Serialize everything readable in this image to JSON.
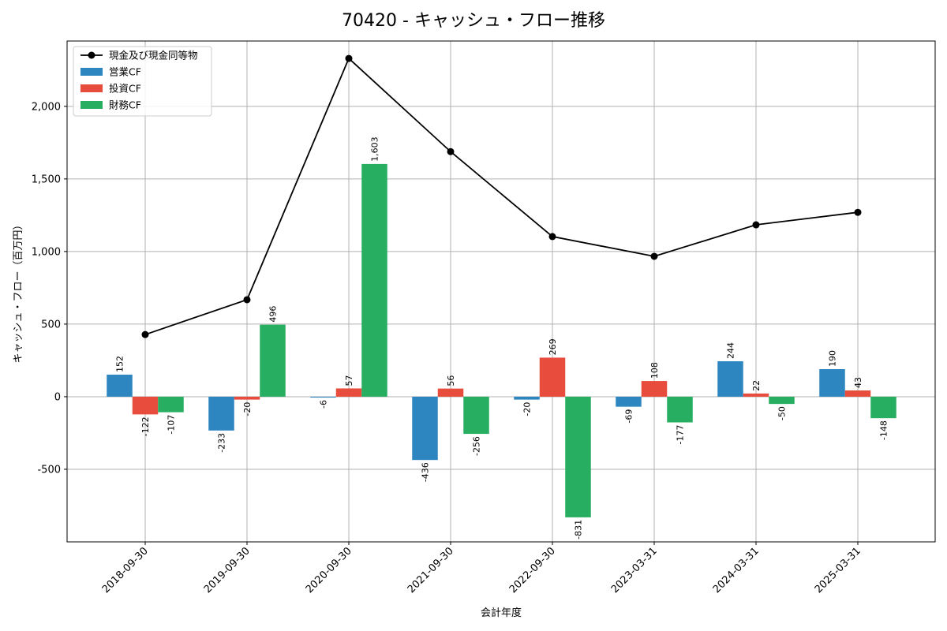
{
  "chart_data": {
    "type": "bar+line",
    "title": "70420 - キャッシュ・フロー推移",
    "xlabel": "会計年度",
    "ylabel": "キャッシュ・フロー（百万円）",
    "categories": [
      "2018-09-30",
      "2019-09-30",
      "2020-09-30",
      "2021-09-30",
      "2022-09-30",
      "2023-03-31",
      "2024-03-31",
      "2025-03-31"
    ],
    "ylim": [
      -1000,
      2450
    ],
    "yticks": [
      -500,
      0,
      500,
      1000,
      1500,
      2000
    ],
    "ytick_labels": [
      "-500",
      "0",
      "500",
      "1,000",
      "1,500",
      "2,000"
    ],
    "grid": true,
    "legend_position": "top-left",
    "line": {
      "name": "現金及び現金同等物",
      "color": "#000000",
      "values": [
        428,
        668,
        2330,
        1688,
        1103,
        967,
        1184,
        1270
      ]
    },
    "series": [
      {
        "name": "営業CF",
        "color": "#2e86c1",
        "values": [
          152,
          -233,
          -6,
          -436,
          -20,
          -69,
          244,
          190
        ],
        "labels": [
          "152",
          "-233",
          "-6",
          "-436",
          "-20",
          "-69",
          "244",
          "190"
        ]
      },
      {
        "name": "投資CF",
        "color": "#e74c3c",
        "values": [
          -122,
          -20,
          57,
          56,
          269,
          108,
          22,
          43
        ],
        "labels": [
          "-122",
          "-20",
          "57",
          "56",
          "269",
          "108",
          "22",
          "43"
        ]
      },
      {
        "name": "財務CF",
        "color": "#27ae60",
        "values": [
          -107,
          496,
          1603,
          -256,
          -831,
          -177,
          -50,
          -148
        ],
        "labels": [
          "-107",
          "496",
          "1,603",
          "-256",
          "-831",
          "-177",
          "-50",
          "-148"
        ]
      }
    ]
  }
}
